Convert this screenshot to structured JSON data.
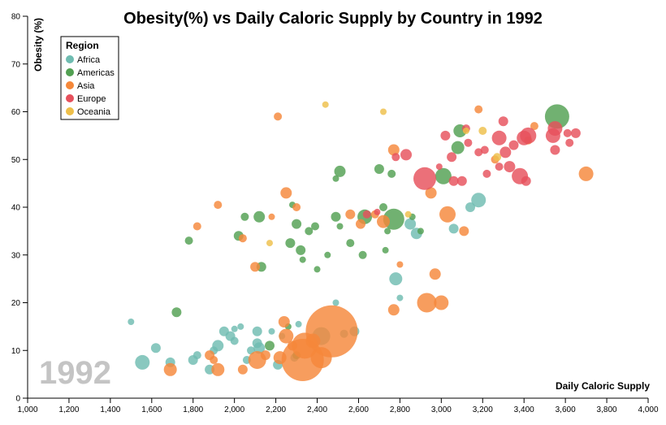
{
  "chart_data": {
    "type": "scatter",
    "title": "Obesity(%) vs Daily Caloric Supply by Country in 1992",
    "xlabel": "Daily Caloric Supply",
    "ylabel": "Obesity (%)",
    "year_label": "1992",
    "xlim": [
      1000,
      4000
    ],
    "ylim": [
      0,
      80
    ],
    "x_ticks": [
      1000,
      1200,
      1400,
      1600,
      1800,
      2000,
      2200,
      2400,
      2600,
      2800,
      3000,
      3200,
      3400,
      3600,
      3800,
      4000
    ],
    "x_tick_labels": [
      "1,000",
      "1,200",
      "1,400",
      "1,600",
      "1,800",
      "2,000",
      "2,200",
      "2,400",
      "2,600",
      "2,800",
      "3,000",
      "3,200",
      "3,400",
      "3,600",
      "3,800",
      "4,000"
    ],
    "y_ticks": [
      0,
      10,
      20,
      30,
      40,
      50,
      60,
      70,
      80
    ],
    "y_tick_labels": [
      "0",
      "10",
      "20",
      "30",
      "40",
      "50",
      "60",
      "70",
      "80"
    ],
    "grid": false,
    "legend": {
      "title": "Region",
      "placement": "top-left",
      "entries": [
        "Africa",
        "Americas",
        "Asia",
        "Europe",
        "Oceania"
      ]
    },
    "colors": {
      "Africa": "#6fbcb1",
      "Americas": "#52a052",
      "Asia": "#f5883a",
      "Europe": "#e6505c",
      "Oceania": "#eebf4a"
    },
    "size_note": "bubble area proportional to population",
    "series": [
      {
        "name": "Africa",
        "points": [
          [
            1500,
            16,
            4
          ],
          [
            1555,
            7.5,
            9
          ],
          [
            1620,
            10.5,
            6
          ],
          [
            1690,
            7.5,
            6
          ],
          [
            1800,
            8,
            6
          ],
          [
            1820,
            9,
            5
          ],
          [
            1880,
            6,
            6
          ],
          [
            1900,
            10,
            5
          ],
          [
            1920,
            11,
            7
          ],
          [
            1950,
            14,
            6
          ],
          [
            1980,
            13,
            6
          ],
          [
            2000,
            14.5,
            4
          ],
          [
            2000,
            12,
            5
          ],
          [
            2030,
            15,
            4
          ],
          [
            2060,
            8,
            5
          ],
          [
            2080,
            10,
            5
          ],
          [
            2110,
            14,
            6
          ],
          [
            2110,
            11.5,
            6
          ],
          [
            2120,
            10.5,
            7
          ],
          [
            2180,
            14,
            4
          ],
          [
            2210,
            7,
            6
          ],
          [
            2230,
            13,
            4
          ],
          [
            2290,
            8.5,
            5
          ],
          [
            2310,
            15.5,
            4
          ],
          [
            2420,
            13,
            11
          ],
          [
            2490,
            20,
            4
          ],
          [
            2530,
            13.5,
            5
          ],
          [
            2580,
            14,
            6
          ],
          [
            2780,
            25,
            8
          ],
          [
            2800,
            21,
            4
          ],
          [
            2850,
            36.5,
            7
          ],
          [
            2880,
            34.5,
            7
          ],
          [
            3060,
            35.5,
            6
          ],
          [
            3140,
            40,
            6
          ],
          [
            3180,
            41.5,
            9
          ]
        ]
      },
      {
        "name": "Americas",
        "points": [
          [
            1780,
            33,
            5
          ],
          [
            1720,
            18,
            6
          ],
          [
            2020,
            34,
            6
          ],
          [
            2050,
            38,
            5
          ],
          [
            2120,
            38,
            7
          ],
          [
            2130,
            27.5,
            6
          ],
          [
            2170,
            11,
            6
          ],
          [
            2260,
            15,
            4
          ],
          [
            2270,
            32.5,
            6
          ],
          [
            2280,
            40.5,
            4
          ],
          [
            2300,
            36.5,
            6
          ],
          [
            2300,
            9,
            5
          ],
          [
            2320,
            31,
            6
          ],
          [
            2330,
            29,
            4
          ],
          [
            2360,
            35,
            5
          ],
          [
            2390,
            36,
            5
          ],
          [
            2400,
            27,
            4
          ],
          [
            2450,
            30,
            4
          ],
          [
            2490,
            46,
            4
          ],
          [
            2510,
            47.5,
            7
          ],
          [
            2490,
            38,
            6
          ],
          [
            2510,
            36,
            4
          ],
          [
            2560,
            32.5,
            5
          ],
          [
            2620,
            30,
            5
          ],
          [
            2630,
            38,
            9
          ],
          [
            2700,
            48,
            6
          ],
          [
            2720,
            40,
            5
          ],
          [
            2730,
            31,
            4
          ],
          [
            2740,
            35,
            4
          ],
          [
            2760,
            47,
            5
          ],
          [
            2770,
            37.5,
            13
          ],
          [
            2860,
            38,
            4
          ],
          [
            2900,
            35,
            4
          ],
          [
            3010,
            46.5,
            10
          ],
          [
            3080,
            52.5,
            8
          ],
          [
            3090,
            56,
            8
          ],
          [
            3560,
            59,
            15
          ]
        ]
      },
      {
        "name": "Asia",
        "points": [
          [
            1690,
            6,
            8
          ],
          [
            1880,
            9,
            6
          ],
          [
            1900,
            8,
            5
          ],
          [
            1920,
            6,
            8
          ],
          [
            1920,
            40.5,
            5
          ],
          [
            1820,
            36,
            5
          ],
          [
            2040,
            6,
            6
          ],
          [
            2040,
            33.5,
            5
          ],
          [
            2100,
            27.5,
            6
          ],
          [
            2110,
            8,
            11
          ],
          [
            2150,
            9,
            6
          ],
          [
            2180,
            38,
            4
          ],
          [
            2210,
            59,
            5
          ],
          [
            2220,
            8.5,
            8
          ],
          [
            2240,
            16,
            7
          ],
          [
            2250,
            13,
            9
          ],
          [
            2250,
            43,
            7
          ],
          [
            2280,
            11,
            6
          ],
          [
            2300,
            40,
            5
          ],
          [
            2340,
            11,
            16
          ],
          [
            2330,
            8,
            26
          ],
          [
            2380,
            12,
            9
          ],
          [
            2420,
            8.5,
            13
          ],
          [
            2470,
            14,
            32
          ],
          [
            2560,
            38.5,
            6
          ],
          [
            2610,
            36.5,
            6
          ],
          [
            2680,
            38.5,
            5
          ],
          [
            2720,
            37,
            8
          ],
          [
            2770,
            52,
            7
          ],
          [
            2770,
            18.5,
            7
          ],
          [
            2800,
            28,
            4
          ],
          [
            2930,
            20,
            12
          ],
          [
            2950,
            43,
            7
          ],
          [
            2970,
            26,
            7
          ],
          [
            3000,
            20,
            9
          ],
          [
            3030,
            38.5,
            10
          ],
          [
            3110,
            35,
            6
          ],
          [
            3180,
            60.5,
            5
          ],
          [
            3260,
            50,
            5
          ],
          [
            3420,
            54,
            5
          ],
          [
            3450,
            57,
            5
          ],
          [
            3700,
            47,
            9
          ]
        ]
      },
      {
        "name": "Europe",
        "points": [
          [
            2640,
            38.5,
            5
          ],
          [
            2690,
            39,
            4
          ],
          [
            2780,
            50.5,
            5
          ],
          [
            2830,
            51,
            7
          ],
          [
            2920,
            46,
            14
          ],
          [
            2990,
            48.5,
            4
          ],
          [
            3020,
            55,
            6
          ],
          [
            3050,
            50.5,
            6
          ],
          [
            3060,
            45.5,
            6
          ],
          [
            3100,
            45.5,
            6
          ],
          [
            3120,
            56.5,
            5
          ],
          [
            3130,
            53.5,
            5
          ],
          [
            3180,
            51.5,
            5
          ],
          [
            3210,
            52,
            5
          ],
          [
            3220,
            47,
            5
          ],
          [
            3280,
            48.5,
            5
          ],
          [
            3280,
            54.5,
            9
          ],
          [
            3300,
            58,
            6
          ],
          [
            3310,
            51.5,
            7
          ],
          [
            3330,
            48.5,
            7
          ],
          [
            3350,
            53,
            6
          ],
          [
            3380,
            46.5,
            10
          ],
          [
            3400,
            54.5,
            9
          ],
          [
            3410,
            45.5,
            6
          ],
          [
            3420,
            55,
            10
          ],
          [
            3540,
            55,
            9
          ],
          [
            3550,
            52,
            6
          ],
          [
            3550,
            56.5,
            9
          ],
          [
            3610,
            55.5,
            5
          ],
          [
            3620,
            53.5,
            5
          ],
          [
            3650,
            55.5,
            6
          ]
        ]
      },
      {
        "name": "Oceania",
        "points": [
          [
            2170,
            32.5,
            4
          ],
          [
            2440,
            61.5,
            4
          ],
          [
            2720,
            60,
            4
          ],
          [
            2840,
            38.5,
            4
          ],
          [
            3120,
            56,
            4
          ],
          [
            3200,
            56,
            5
          ],
          [
            3270,
            50.5,
            5
          ]
        ]
      }
    ]
  }
}
